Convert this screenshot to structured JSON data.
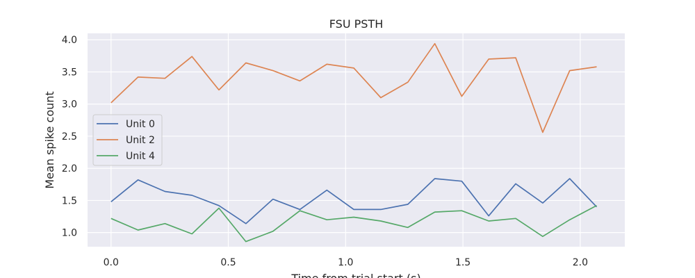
{
  "chart_data": {
    "type": "line",
    "title": "FSU PSTH",
    "xlabel": "Time from trial start (s)",
    "ylabel": "Mean spike count",
    "xlim": [
      -0.1,
      2.19
    ],
    "ylim": [
      0.78,
      4.1
    ],
    "xticks": [
      0.0,
      0.5,
      1.0,
      1.5,
      2.0
    ],
    "xtick_labels": [
      "0.0",
      "0.5",
      "1.0",
      "1.5",
      "2.0"
    ],
    "yticks": [
      1.0,
      1.5,
      2.0,
      2.5,
      3.0,
      3.5,
      4.0
    ],
    "ytick_labels": [
      "1.0",
      "1.5",
      "2.0",
      "2.5",
      "3.0",
      "3.5",
      "4.0"
    ],
    "grid": true,
    "legend_position": "center-left",
    "x": [
      0.0,
      0.115,
      0.23,
      0.345,
      0.46,
      0.575,
      0.69,
      0.805,
      0.92,
      1.035,
      1.15,
      1.265,
      1.38,
      1.495,
      1.61,
      1.725,
      1.84,
      1.955,
      2.07
    ],
    "series": [
      {
        "name": "Unit 0",
        "color": "#4c72b0",
        "values": [
          1.48,
          1.82,
          1.64,
          1.58,
          1.42,
          1.14,
          1.52,
          1.36,
          1.66,
          1.36,
          1.36,
          1.44,
          1.84,
          1.8,
          1.26,
          1.76,
          1.46,
          1.84,
          1.4
        ]
      },
      {
        "name": "Unit 2",
        "color": "#dd8452",
        "values": [
          3.02,
          3.42,
          3.4,
          3.74,
          3.22,
          3.64,
          3.52,
          3.36,
          3.62,
          3.56,
          3.1,
          3.34,
          3.94,
          3.12,
          3.7,
          3.72,
          2.56,
          3.52,
          3.58
        ]
      },
      {
        "name": "Unit 4",
        "color": "#55a868",
        "values": [
          1.22,
          1.04,
          1.14,
          0.98,
          1.38,
          0.86,
          1.02,
          1.34,
          1.2,
          1.24,
          1.18,
          1.08,
          1.32,
          1.34,
          1.18,
          1.22,
          0.94,
          1.2,
          1.42
        ]
      }
    ]
  }
}
